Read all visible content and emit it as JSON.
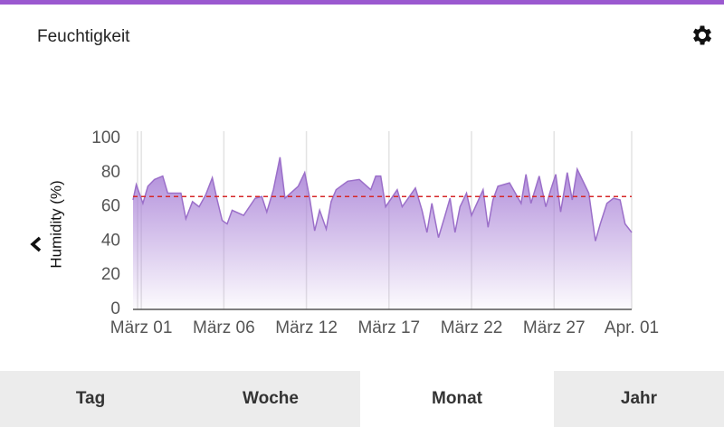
{
  "header": {
    "title": "Feuchtigkeit"
  },
  "chart_data": {
    "type": "area",
    "y_label": "Humidity (%)",
    "color": "#9b6fc9",
    "reference_line": 66,
    "reference_color": "#d62728",
    "x": [
      -0.5,
      -0.3,
      0.1,
      0.4,
      0.8,
      1.3,
      1.6,
      2.4,
      2.7,
      3.1,
      3.5,
      3.9,
      4.3,
      4.6,
      4.9,
      5.2,
      5.5,
      6.2,
      6.9,
      7.3,
      7.6,
      8.0,
      8.4,
      8.7,
      9.5,
      9.9,
      10.2,
      10.5,
      10.8,
      11.2,
      11.5,
      11.8,
      12.5,
      13.2,
      13.9,
      14.2,
      14.5,
      14.8,
      15.5,
      15.8,
      16.6,
      17.0,
      17.3,
      17.6,
      18.0,
      18.4,
      18.7,
      19.0,
      19.3,
      19.7,
      20.0,
      20.7,
      21.0,
      21.3,
      21.6,
      22.3,
      23.0,
      23.3,
      23.6,
      24.1,
      24.5,
      24.8,
      25.1,
      25.4,
      25.8,
      26.1,
      26.4,
      27.1,
      27.5,
      27.8,
      28.2,
      28.6,
      29.0,
      29.3,
      29.7
    ],
    "values": [
      64,
      73,
      62,
      72,
      76,
      78,
      68,
      68,
      53,
      63,
      60,
      67,
      77,
      64,
      52,
      50,
      58,
      55,
      65,
      66,
      57,
      70,
      89,
      65,
      72,
      80,
      65,
      46,
      58,
      47,
      63,
      70,
      75,
      76,
      70,
      78,
      78,
      60,
      70,
      60,
      71,
      58,
      45,
      62,
      42,
      55,
      65,
      45,
      60,
      68,
      55,
      70,
      48,
      64,
      72,
      74,
      62,
      79,
      62,
      78,
      60,
      70,
      79,
      57,
      80,
      64,
      82,
      68,
      40,
      50,
      62,
      65,
      64,
      50,
      45
    ],
    "xlim": [
      -0.5,
      29.7
    ],
    "xticks": [
      {
        "value": 0,
        "label": "März 01"
      },
      {
        "value": 5,
        "label": "März 06"
      },
      {
        "value": 10,
        "label": "März 12"
      },
      {
        "value": 15,
        "label": "März 17"
      },
      {
        "value": 20,
        "label": "März 22"
      },
      {
        "value": 25,
        "label": "März 27"
      },
      {
        "value": 29.7,
        "label": "Apr. 01"
      }
    ],
    "ylim": [
      0,
      100
    ],
    "yticks": [
      0,
      20,
      40,
      60,
      80,
      100
    ],
    "grid": true
  },
  "tabs": [
    "Tag",
    "Woche",
    "Monat",
    "Jahr"
  ]
}
